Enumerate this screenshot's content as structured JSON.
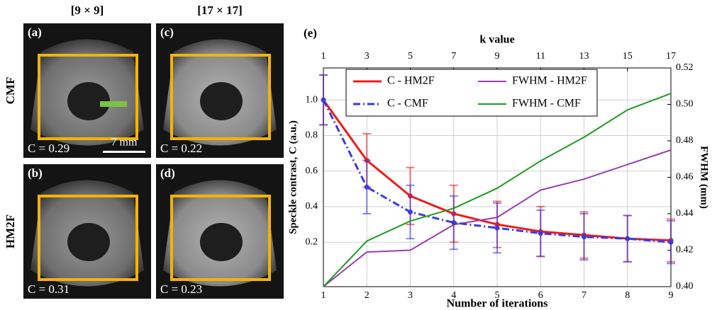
{
  "panels": {
    "column_headers": [
      "[9 × 9]",
      "[17 × 17]"
    ],
    "row_headers": [
      "CMF",
      "HM2F"
    ],
    "scale_bar": "7 mm",
    "images": [
      {
        "label": "(a)",
        "contrast": "C = 0.29"
      },
      {
        "label": "(c)",
        "contrast": "C = 0.22"
      },
      {
        "label": "(b)",
        "contrast": "C = 0.31"
      },
      {
        "label": "(d)",
        "contrast": "C = 0.23"
      }
    ]
  },
  "chart_data": {
    "type": "line",
    "title": "(e)",
    "x_label": "Number of iterations",
    "x2_label": "k value",
    "y_label": "Speckle contrast, C (a.u.)",
    "y2_label": "FWHM (mm)",
    "x": [
      1,
      2,
      3,
      4,
      5,
      6,
      7,
      8,
      9
    ],
    "xlim": [
      1,
      9
    ],
    "xticks": [
      1,
      2,
      3,
      4,
      5,
      6,
      7,
      8,
      9
    ],
    "x2lim": [
      1,
      17
    ],
    "x2ticks": [
      1,
      3,
      5,
      7,
      9,
      11,
      13,
      15,
      17
    ],
    "ylim": [
      -0.05,
      1.18
    ],
    "yticks": [
      0.2,
      0.4,
      0.6,
      0.8,
      {
        "value": 1.0,
        "label": "1.0"
      }
    ],
    "y2lim": [
      0.4,
      0.52
    ],
    "y2ticks": [
      {
        "value": 0.4,
        "label": "0.40"
      },
      0.42,
      0.44,
      0.46,
      0.48,
      {
        "value": 0.5,
        "label": "0.50"
      },
      0.52
    ],
    "grid": true,
    "series": [
      {
        "name": "C - HM2F",
        "color": "#ee1c1c",
        "dash": false,
        "values": [
          1.0,
          0.66,
          0.46,
          0.36,
          0.3,
          0.26,
          0.24,
          0.22,
          0.21
        ],
        "errors": [
          0.14,
          0.15,
          0.16,
          0.16,
          0.13,
          0.14,
          0.13,
          0.13,
          0.12
        ]
      },
      {
        "name": "FWHM - HM2F",
        "color": "#9b3fb0",
        "dash": false,
        "axis": "y2",
        "values": [
          0.4,
          0.419,
          0.42,
          0.434,
          0.438,
          0.453,
          0.459,
          0.467,
          0.475
        ]
      },
      {
        "name": "C - CMF",
        "color": "#3a3ae0",
        "dash": true,
        "values": [
          1.0,
          0.51,
          0.37,
          0.31,
          0.28,
          0.25,
          0.23,
          0.22,
          0.2
        ],
        "errors": [
          0.14,
          0.15,
          0.15,
          0.15,
          0.14,
          0.13,
          0.13,
          0.13,
          0.12
        ]
      },
      {
        "name": "FWHM - CMF",
        "color": "#1f9a25",
        "dash": false,
        "axis": "y2",
        "values": [
          0.4,
          0.425,
          0.436,
          0.443,
          0.454,
          0.469,
          0.482,
          0.497,
          0.506
        ]
      }
    ]
  }
}
